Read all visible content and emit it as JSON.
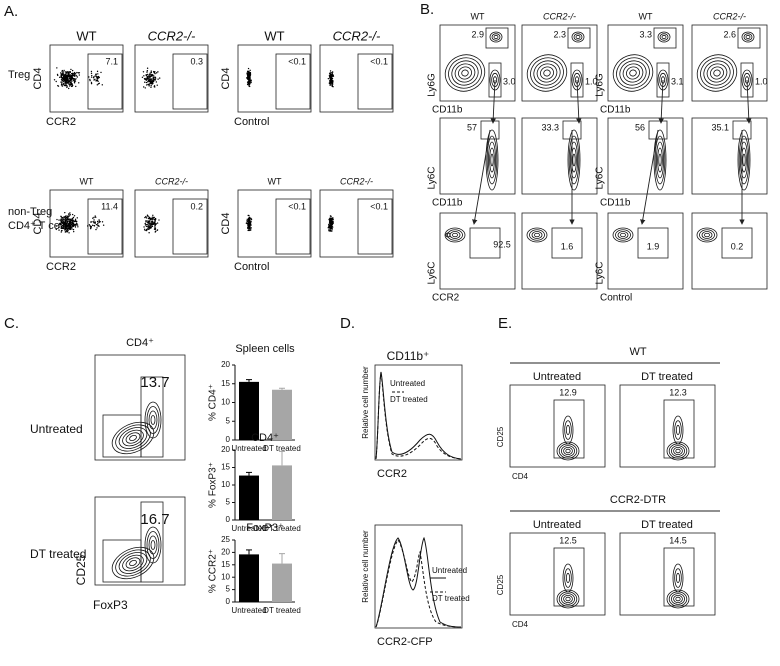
{
  "panel_a": {
    "label": "A.",
    "rows": [
      {
        "row_label": [
          "Treg"
        ],
        "plots": [
          {
            "title": "WT",
            "gate": "7.1",
            "y_label": "CD4",
            "x_label": "CCR2"
          },
          {
            "title": "CCR2-/-",
            "gate": "0.3"
          },
          {
            "title": "WT",
            "gate": "<0.1",
            "y_label": "CD4",
            "x_label": "Control"
          },
          {
            "title": "CCR2-/-",
            "gate": "<0.1"
          }
        ]
      },
      {
        "row_label": [
          "non-Treg",
          "CD4⁺ T cells"
        ],
        "plots": [
          {
            "title": "WT",
            "gate": "11.4",
            "y_label": "CD4",
            "x_label": "CCR2"
          },
          {
            "title": "CCR2-/-",
            "gate": "0.2"
          },
          {
            "title": "WT",
            "gate": "<0.1",
            "y_label": "CD4",
            "x_label": "Control"
          },
          {
            "title": "CCR2-/-",
            "gate": "<0.1"
          }
        ]
      }
    ]
  },
  "panel_b": {
    "label": "B.",
    "titles": [
      "WT",
      "CCR2-/-",
      "WT",
      "CCR2-/-"
    ],
    "rows": [
      {
        "y_labels": [
          "Ly6G",
          "Ly6G"
        ],
        "x_labels": [
          "CD11b",
          "CD11b"
        ],
        "gates": [
          [
            "2.9",
            "3.0"
          ],
          [
            "2.3",
            "1.0"
          ],
          [
            "3.3",
            "3.1"
          ],
          [
            "2.6",
            "1.0"
          ]
        ]
      },
      {
        "y_labels": [
          "Ly6C",
          "Ly6C"
        ],
        "x_labels": [
          "CD11b",
          "CD11b"
        ],
        "gates": [
          [
            "57"
          ],
          [
            "33.3"
          ],
          [
            "56"
          ],
          [
            "35.1"
          ]
        ]
      },
      {
        "y_labels": [
          "Ly6C",
          "Ly6C"
        ],
        "x_labels": [
          "CCR2",
          "Control"
        ],
        "gates": [
          [
            "92.5"
          ],
          [
            "1.6"
          ],
          [
            "1.9"
          ],
          [
            "0.2"
          ]
        ]
      }
    ]
  },
  "panel_c": {
    "label": "C.",
    "flow": {
      "title": "CD4⁺",
      "y_label": "CD25",
      "x_label": "FoxP3",
      "plots": [
        {
          "row_label": "Untreated",
          "gate": "13.7"
        },
        {
          "row_label": "DT treated",
          "gate": "16.7"
        }
      ]
    },
    "bar_charts": [
      {
        "title": "Spleen cells",
        "y_label": "% CD4⁺",
        "categories": [
          "Untreated",
          "DT treated"
        ],
        "values": [
          15.5,
          13.4
        ],
        "errors": [
          0.6,
          0.4
        ],
        "colors": [
          "#000000",
          "#a6a6a6"
        ],
        "ylim": [
          0,
          20
        ],
        "yticks": [
          0,
          5,
          10,
          15,
          20
        ]
      },
      {
        "title": "CD4⁺",
        "y_label": "% FoxP3⁺",
        "categories": [
          "Untreated",
          "DT treated"
        ],
        "values": [
          12.7,
          15.6
        ],
        "errors": [
          0.9,
          4
        ],
        "colors": [
          "#000000",
          "#a6a6a6"
        ],
        "ylim": [
          0,
          20
        ],
        "yticks": [
          0,
          5,
          10,
          15,
          20
        ]
      },
      {
        "title": "FoxP3⁺",
        "y_label": "% CCR2⁺",
        "categories": [
          "Untreated",
          "DT treated"
        ],
        "values": [
          19.2,
          15.5
        ],
        "errors": [
          1.8,
          4
        ],
        "colors": [
          "#000000",
          "#a6a6a6"
        ],
        "ylim": [
          0,
          25
        ],
        "yticks": [
          0,
          5,
          10,
          15,
          20,
          25
        ]
      }
    ]
  },
  "panel_d": {
    "label": "D.",
    "histograms": [
      {
        "title": "CD11b⁺",
        "y_label": "Relative cell number",
        "x_label": "CCR2",
        "legend": [
          "Untreated",
          "DT treated"
        ]
      },
      {
        "y_label": "Relative cell number",
        "x_label": "CCR2-CFP",
        "legend": [
          "Untreated",
          "DT treated"
        ]
      }
    ]
  },
  "panel_e": {
    "label": "E.",
    "groups": [
      {
        "title": "WT",
        "columns": [
          "Untreated",
          "DT treated"
        ],
        "gates": [
          "12.9",
          "12.3"
        ],
        "y_label": "CD25",
        "x_label": "CD4"
      },
      {
        "title": "CCR2-DTR",
        "columns": [
          "Untreated",
          "DT treated"
        ],
        "gates": [
          "12.5",
          "14.5"
        ],
        "y_label": "CD25",
        "x_label": "CD4"
      }
    ]
  }
}
